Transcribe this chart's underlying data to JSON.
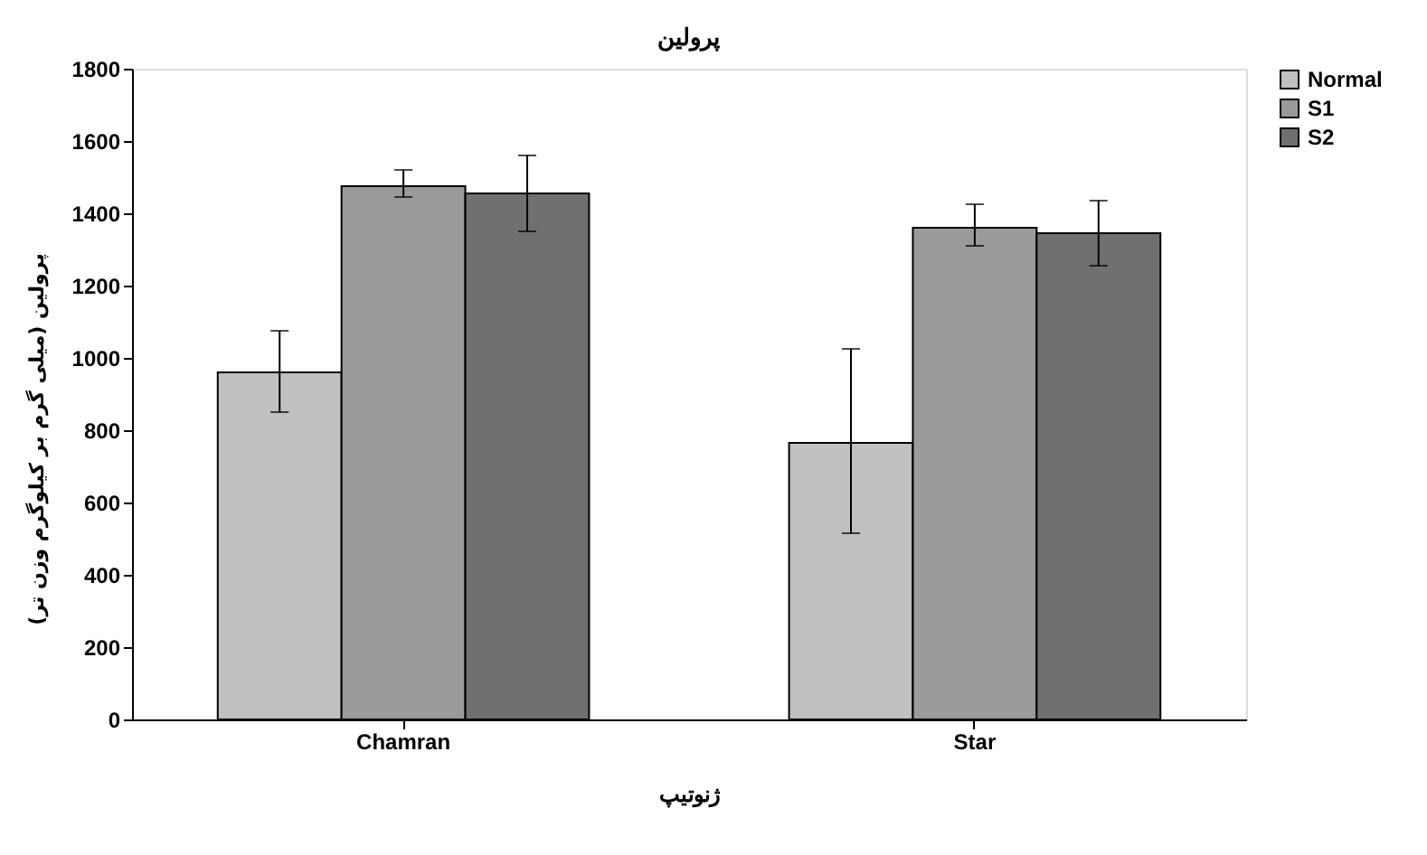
{
  "chart_data": {
    "type": "bar",
    "title": "پرولین",
    "xlabel": "ژنوتیپ",
    "ylabel": "پرولین (میلی گرم بر کیلوگرم وزن تر)",
    "categories": [
      "Chamran",
      "Star"
    ],
    "series": [
      {
        "name": "Normal",
        "color": "#c0c0c0",
        "values": [
          960,
          765
        ],
        "errors": [
          [
            850,
            1075
          ],
          [
            515,
            1025
          ]
        ]
      },
      {
        "name": "S1",
        "color": "#9a9a9a",
        "values": [
          1475,
          1360
        ],
        "errors": [
          [
            1445,
            1520
          ],
          [
            1310,
            1425
          ]
        ]
      },
      {
        "name": "S2",
        "color": "#707070",
        "values": [
          1455,
          1345
        ],
        "errors": [
          [
            1350,
            1560
          ],
          [
            1255,
            1435
          ]
        ]
      }
    ],
    "ylim": [
      0,
      1800
    ],
    "yticks": [
      0,
      200,
      400,
      600,
      800,
      1000,
      1200,
      1400,
      1600,
      1800
    ],
    "grid": false,
    "legend": "right"
  }
}
